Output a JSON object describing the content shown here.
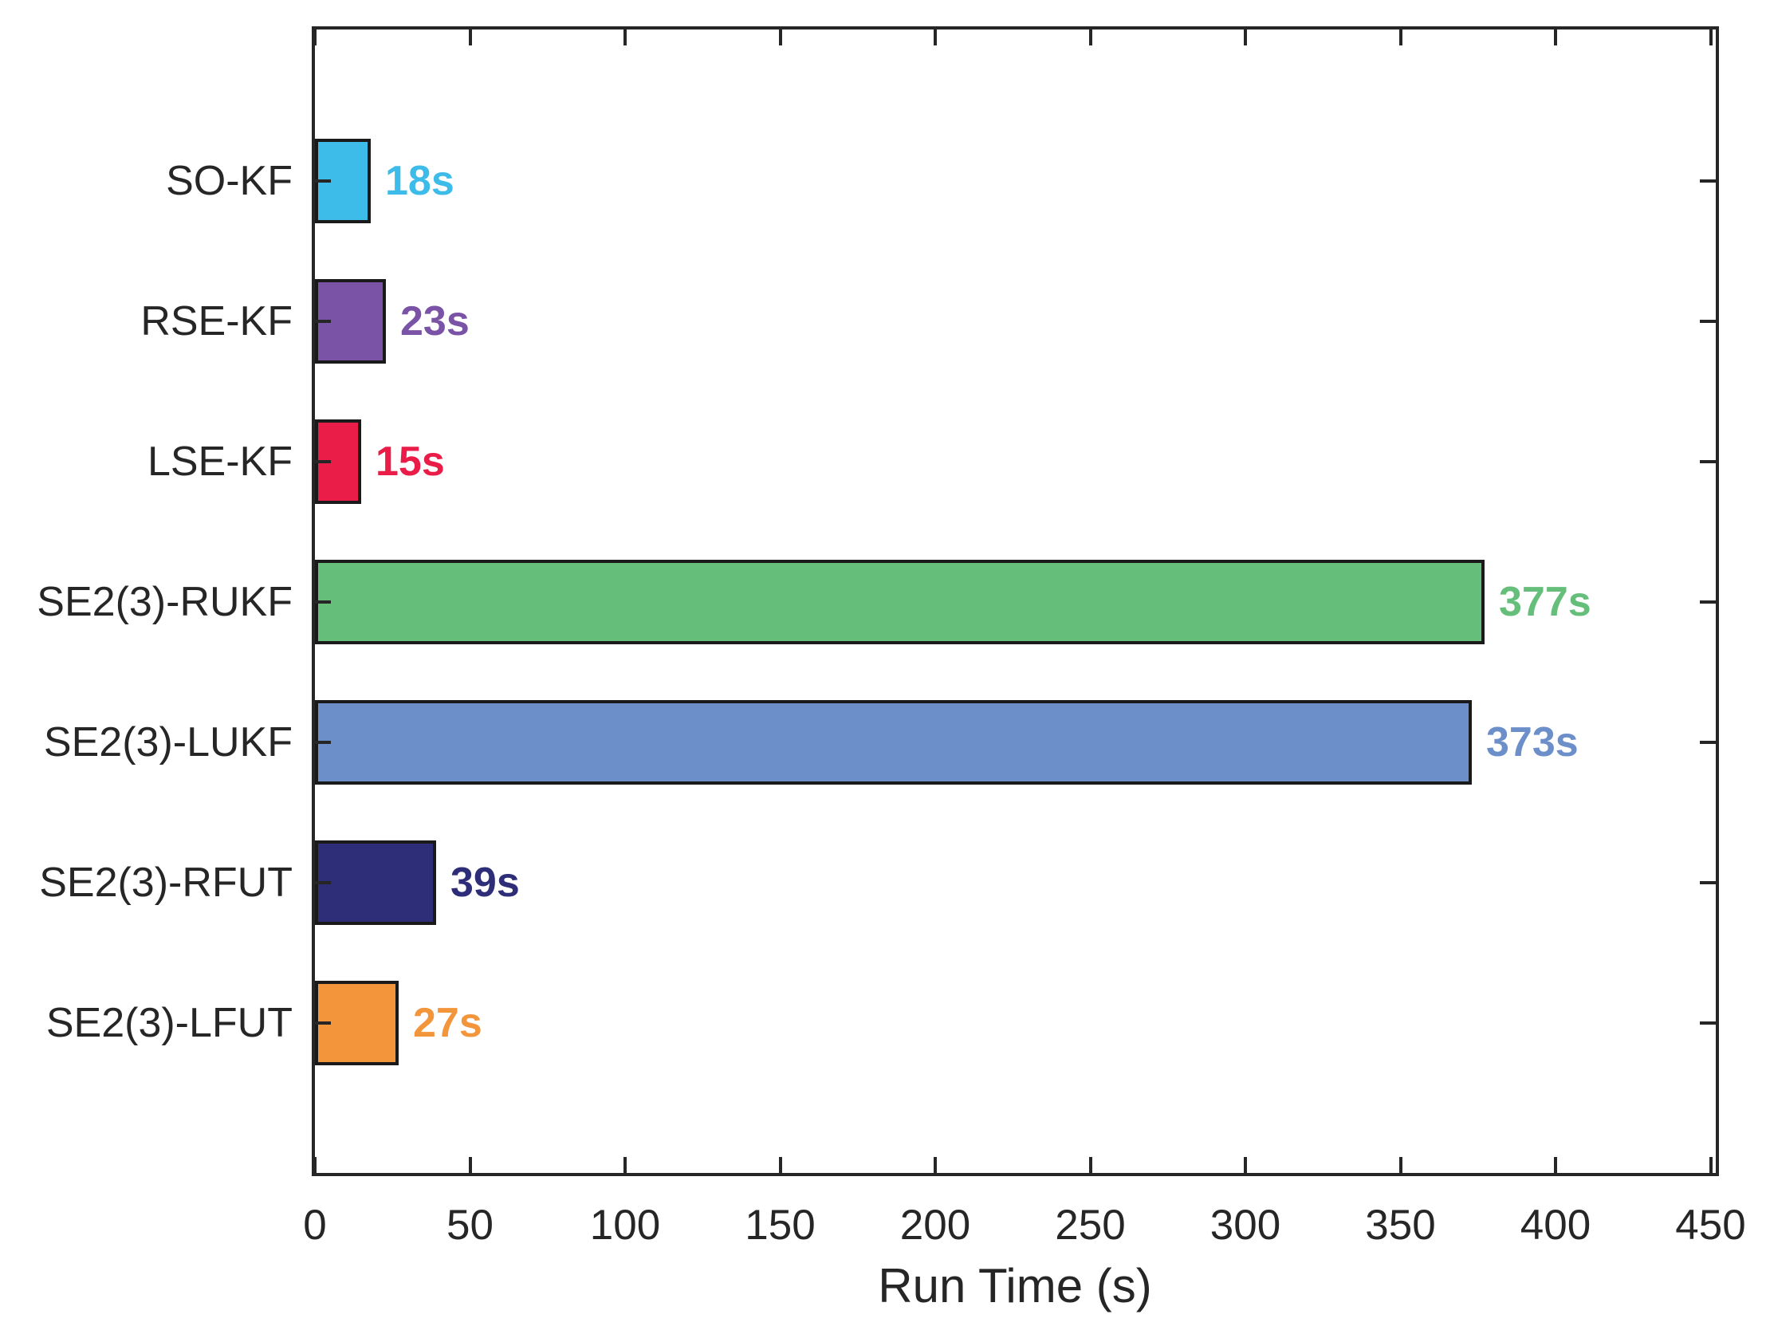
{
  "chart_data": {
    "type": "bar",
    "orientation": "horizontal",
    "title": "",
    "xlabel": "Run Time (s)",
    "ylabel": "",
    "categories": [
      "SO-KF",
      "RSE-KF",
      "LSE-KF",
      "SE2(3)-RUKF",
      "SE2(3)-LUKF",
      "SE2(3)-RFUT",
      "SE2(3)-LFUT"
    ],
    "values": [
      18,
      23,
      15,
      377,
      373,
      39,
      27
    ],
    "value_labels": [
      "18s",
      "23s",
      "15s",
      "377s",
      "373s",
      "39s",
      "27s"
    ],
    "bar_colors": [
      "#3EBCE9",
      "#7A52A6",
      "#E91D48",
      "#65BF7B",
      "#6C8FCA",
      "#2E2D77",
      "#F3953A"
    ],
    "x_ticks": [
      0,
      50,
      100,
      150,
      200,
      250,
      300,
      350,
      400,
      450
    ],
    "xlim": [
      0,
      452
    ],
    "grid": false,
    "legend": "none",
    "axis_color": "#262626",
    "bar_border_color": "#1a1a1a",
    "background_color": "#ffffff"
  }
}
